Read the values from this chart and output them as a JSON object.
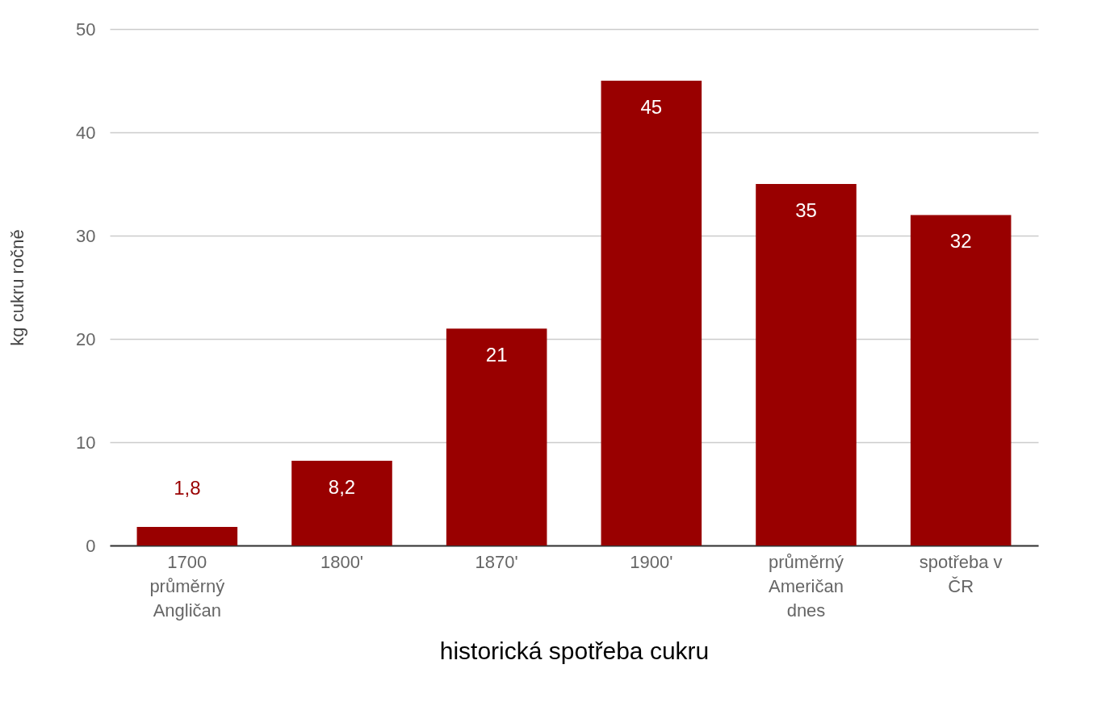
{
  "chart_data": {
    "type": "bar",
    "xlabel": "historická spotřeba cukru",
    "ylabel": "kg cukru ročně",
    "categories": [
      "1700 průměrný Angličan",
      "1800'",
      "1870'",
      "1900'",
      "průměrný Američan dnes",
      "spotřeba v ČR"
    ],
    "values": [
      1.8,
      8.2,
      21,
      45,
      35,
      32
    ],
    "value_labels": [
      "1,8",
      "8,2",
      "21",
      "45",
      "35",
      "32"
    ],
    "color": "#990000",
    "ylim": [
      0,
      50
    ],
    "yticks": [
      0,
      10,
      20,
      30,
      40,
      50
    ],
    "grid": "y"
  }
}
